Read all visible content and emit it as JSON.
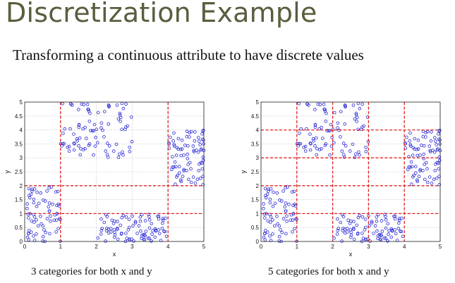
{
  "slide": {
    "title": "Discretization Example",
    "subtitle": "Transforming a continuous attribute to have discrete values"
  },
  "colors": {
    "points": "#2b2bd6",
    "split_lines": "#e02020",
    "grid": "#b8b8b8",
    "title": "#5b5d3f"
  },
  "chart_data": [
    {
      "type": "scatter",
      "caption": "3 categories for both x and y",
      "xlabel": "x",
      "ylabel": "y",
      "xlim": [
        0,
        5
      ],
      "ylim": [
        0,
        5
      ],
      "x_ticks": [
        "0",
        "1",
        "2",
        "3",
        "4",
        "5"
      ],
      "y_ticks": [
        "0",
        "0.5",
        "1",
        "1.5",
        "2",
        "2.5",
        "3",
        "3.5",
        "4",
        "4.5",
        "5"
      ],
      "grid": true,
      "x_splits": [
        1,
        4
      ],
      "y_splits": [
        1,
        2
      ],
      "clusters": [
        {
          "x_range": [
            0,
            1
          ],
          "y_range": [
            0,
            2
          ],
          "count": 70
        },
        {
          "x_range": [
            1,
            3
          ],
          "y_range": [
            3,
            5
          ],
          "count": 90
        },
        {
          "x_range": [
            4,
            5
          ],
          "y_range": [
            2,
            4
          ],
          "count": 80
        },
        {
          "x_range": [
            2,
            4
          ],
          "y_range": [
            0,
            1
          ],
          "count": 90
        }
      ]
    },
    {
      "type": "scatter",
      "caption": "5 categories for both x and y",
      "xlabel": "x",
      "ylabel": "y",
      "xlim": [
        0,
        5
      ],
      "ylim": [
        0,
        5
      ],
      "x_ticks": [
        "0",
        "1",
        "2",
        "3",
        "4",
        "5"
      ],
      "y_ticks": [
        "0",
        "0.5",
        "1",
        "1.5",
        "2",
        "2.5",
        "3",
        "3.5",
        "4",
        "4.5",
        "5"
      ],
      "grid": true,
      "x_splits": [
        1,
        2,
        3,
        4
      ],
      "y_splits": [
        1,
        2,
        3,
        4
      ],
      "clusters": [
        {
          "x_range": [
            0,
            1
          ],
          "y_range": [
            0,
            2
          ],
          "count": 70
        },
        {
          "x_range": [
            1,
            3
          ],
          "y_range": [
            3,
            5
          ],
          "count": 90
        },
        {
          "x_range": [
            4,
            5
          ],
          "y_range": [
            2,
            4
          ],
          "count": 80
        },
        {
          "x_range": [
            2,
            4
          ],
          "y_range": [
            0,
            1
          ],
          "count": 90
        }
      ]
    }
  ]
}
